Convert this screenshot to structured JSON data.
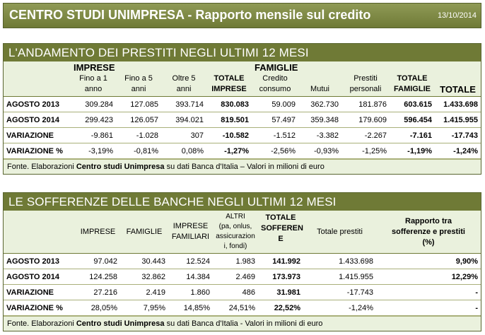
{
  "header": {
    "title": "CENTRO STUDI UNIMPRESA - Rapporto mensile sul credito",
    "date": "13/10/2014"
  },
  "prestiti": {
    "title": "L'ANDAMENTO DEI PRESTITI NEGLI ULTIMI 12 MESI",
    "group_imprese": "IMPRESE",
    "group_famiglie": "FAMIGLIE",
    "cols": [
      [
        "Fino a 1",
        "anno"
      ],
      [
        "Fino a 5",
        "anni"
      ],
      [
        "Oltre 5",
        "anni"
      ],
      [
        "TOTALE",
        "IMPRESE"
      ],
      [
        "Credito",
        "consumo"
      ],
      [
        "",
        "Mutui"
      ],
      [
        "Prestiti",
        "personali"
      ],
      [
        "TOTALE",
        "FAMIGLIE"
      ],
      [
        "",
        "TOTALE"
      ]
    ],
    "rows": [
      {
        "label": "AGOSTO 2013",
        "values": [
          "309.284",
          "127.085",
          "393.714",
          "830.083",
          "59.009",
          "362.730",
          "181.876",
          "603.615",
          "1.433.698"
        ]
      },
      {
        "label": "AGOSTO 2014",
        "values": [
          "299.423",
          "126.057",
          "394.021",
          "819.501",
          "57.497",
          "359.348",
          "179.609",
          "596.454",
          "1.415.955"
        ]
      },
      {
        "label": "VARIAZIONE",
        "values": [
          "-9.861",
          "-1.028",
          "307",
          "-10.582",
          "-1.512",
          "-3.382",
          "-2.267",
          "-7.161",
          "-17.743"
        ]
      },
      {
        "label": "VARIAZIONE %",
        "values": [
          "-3,19%",
          "-0,81%",
          "0,08%",
          "-1,27%",
          "-2,56%",
          "-0,93%",
          "-1,25%",
          "-1,19%",
          "-1,24%"
        ]
      }
    ],
    "source_prefix": "Fonte. Elaborazioni ",
    "source_bold": "Centro studi Unimpresa",
    "source_suffix": " su dati Banca d'Italia – Valori in milioni di euro"
  },
  "sofferenze": {
    "title": "LE SOFFERENZE DELLE BANCHE NEGLI ULTIMI 12 MESI",
    "cols": [
      [
        "IMPRESE"
      ],
      [
        "FAMIGLIE"
      ],
      [
        "IMPRESE",
        "FAMILIARI"
      ],
      [
        "ALTRI",
        "(pa, onlus,",
        "assicurazion",
        "i, fondi)"
      ],
      [
        "TOTALE",
        "SOFFERENZ",
        "E"
      ],
      [
        "Totale prestiti"
      ],
      [
        "Rapporto tra",
        "sofferenze e prestiti",
        "(%)"
      ]
    ],
    "rows": [
      {
        "label": "AGOSTO 2013",
        "values": [
          "97.042",
          "30.443",
          "12.524",
          "1.983",
          "141.992",
          "1.433.698",
          "9,90%"
        ]
      },
      {
        "label": "AGOSTO 2014",
        "values": [
          "124.258",
          "32.862",
          "14.384",
          "2.469",
          "173.973",
          "1.415.955",
          "12,29%"
        ]
      },
      {
        "label": "VARIAZIONE",
        "values": [
          "27.216",
          "2.419",
          "1.860",
          "486",
          "31.981",
          "-17.743",
          "-"
        ]
      },
      {
        "label": "VARIAZIONE %",
        "values": [
          "28,05%",
          "7,95%",
          "14,85%",
          "24,51%",
          "22,52%",
          "-1,24%",
          "-"
        ]
      }
    ],
    "source_prefix": "Fonte. Elaborazioni ",
    "source_bold": "Centro studi Unimpresa",
    "source_suffix": " su dati Banca d'Italia - Valori in milioni di euro"
  }
}
